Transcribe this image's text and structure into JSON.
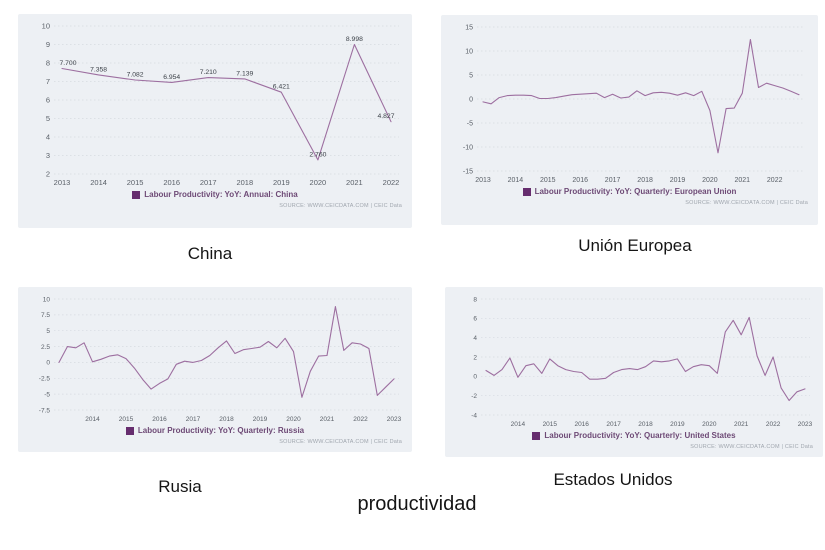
{
  "captions": {
    "china": "China",
    "eu": "Unión Europea",
    "russia": "Rusia",
    "us": "Estados Unidos",
    "footer": "productividad"
  },
  "colors": {
    "card_bg": "#edf0f4",
    "line": "#9d6fa0",
    "grid": "#d6dae0",
    "tick_text": "#5a6068",
    "legend_swatch": "#662d6e",
    "legend_text": "#6e4a76",
    "source_text": "#a0a6ae",
    "point_label_text": "#3c4148"
  },
  "chart_data": [
    {
      "id": "china",
      "type": "line",
      "legend": "Labour Productivity: YoY: Annual: China",
      "source": "SOURCE: WWW.CEICDATA.COM | CEIC Data",
      "x_description": "annual 2013-2022",
      "start_year": 2013,
      "points_per_year": 1,
      "categories": [
        "2013",
        "2014",
        "2015",
        "2016",
        "2017",
        "2018",
        "2019",
        "2020",
        "2021",
        "2022"
      ],
      "values": [
        7.7,
        7.358,
        7.082,
        6.954,
        7.21,
        7.139,
        6.421,
        2.76,
        8.998,
        4.827
      ],
      "point_labels": [
        "7.700",
        "7.358",
        "7.082",
        "6.954",
        "7.210",
        "7.139",
        "6.421",
        "2.760",
        "8.998",
        "4.827"
      ],
      "ylim": [
        2,
        10
      ],
      "yticks": [
        2,
        3,
        4,
        5,
        6,
        7,
        8,
        9,
        10
      ],
      "x_tick_years": [
        2013,
        2014,
        2015,
        2016,
        2017,
        2018,
        2019,
        2020,
        2021,
        2022
      ],
      "tick_font": 7.5,
      "inset": 8
    },
    {
      "id": "european-union",
      "type": "line",
      "legend": "Labour Productivity: YoY: Quarterly: European Union",
      "source": "SOURCE: WWW.CEICDATA.COM | CEIC Data",
      "x_description": "quarterly 2013Q1-2022Q4",
      "start_year": 2013,
      "points_per_year": 4,
      "values": [
        -0.6,
        -1.0,
        0.3,
        0.7,
        0.8,
        0.8,
        0.7,
        0.1,
        0.1,
        0.3,
        0.6,
        0.9,
        1.0,
        1.1,
        1.2,
        0.3,
        1.0,
        0.2,
        0.4,
        1.7,
        0.7,
        1.3,
        1.4,
        1.2,
        0.8,
        1.3,
        0.7,
        1.6,
        -2.4,
        -11.2,
        -2.0,
        -1.9,
        1.2,
        12.4,
        2.4,
        3.3,
        2.8,
        2.3,
        1.6,
        0.9
      ],
      "ylim": [
        -15,
        15
      ],
      "yticks": [
        -15,
        -10,
        -5,
        0,
        5,
        10,
        15
      ],
      "x_tick_years": [
        2013,
        2014,
        2015,
        2016,
        2017,
        2018,
        2019,
        2020,
        2021,
        2022
      ],
      "tick_font": 7,
      "inset": 6
    },
    {
      "id": "russia",
      "type": "line",
      "legend": "Labour Productivity: YoY: Quarterly: Russia",
      "source": "SOURCE: WWW.CEICDATA.COM | CEIC Data",
      "x_description": "quarterly 2013Q1-2023Q1",
      "start_year": 2013,
      "points_per_year": 4,
      "values": [
        0.0,
        2.5,
        2.3,
        3.1,
        0.1,
        0.5,
        1.0,
        1.2,
        0.6,
        -0.9,
        -2.7,
        -4.2,
        -3.3,
        -2.6,
        -0.3,
        0.2,
        0.0,
        0.3,
        1.1,
        2.3,
        3.4,
        1.4,
        2.0,
        2.2,
        2.4,
        3.3,
        2.3,
        3.8,
        1.7,
        -5.5,
        -1.4,
        1.0,
        1.1,
        8.8,
        1.9,
        3.1,
        2.9,
        2.2,
        -5.2,
        -3.9,
        -2.6
      ],
      "ylim": [
        -7.5,
        10
      ],
      "yticks": [
        -7.5,
        -5,
        -2.5,
        0,
        2.5,
        5,
        7.5,
        10
      ],
      "x_tick_years": [
        2014,
        2015,
        2016,
        2017,
        2018,
        2019,
        2020,
        2021,
        2022,
        2023
      ],
      "tick_font": 6.5,
      "inset": 5
    },
    {
      "id": "united-states",
      "type": "line",
      "legend": "Labour Productivity: YoY: Quarterly: United States",
      "source": "SOURCE: WWW.CEICDATA.COM | CEIC Data",
      "x_description": "quarterly 2013Q1-2023Q1",
      "start_year": 2013,
      "points_per_year": 4,
      "values": [
        0.6,
        0.1,
        0.7,
        1.9,
        -0.1,
        1.1,
        1.3,
        0.3,
        1.8,
        1.1,
        0.7,
        0.5,
        0.4,
        -0.3,
        -0.3,
        -0.2,
        0.4,
        0.7,
        0.8,
        0.7,
        1.0,
        1.6,
        1.5,
        1.6,
        1.8,
        0.5,
        1.0,
        1.2,
        1.1,
        0.3,
        4.6,
        5.8,
        4.3,
        6.1,
        2.1,
        0.1,
        2.0,
        -1.2,
        -2.5,
        -1.6,
        -1.3
      ],
      "ylim": [
        -4,
        8
      ],
      "yticks": [
        -4,
        -2,
        0,
        2,
        4,
        6,
        8
      ],
      "x_tick_years": [
        2014,
        2015,
        2016,
        2017,
        2018,
        2019,
        2020,
        2021,
        2022,
        2023
      ],
      "tick_font": 6.5,
      "inset": 5
    }
  ]
}
